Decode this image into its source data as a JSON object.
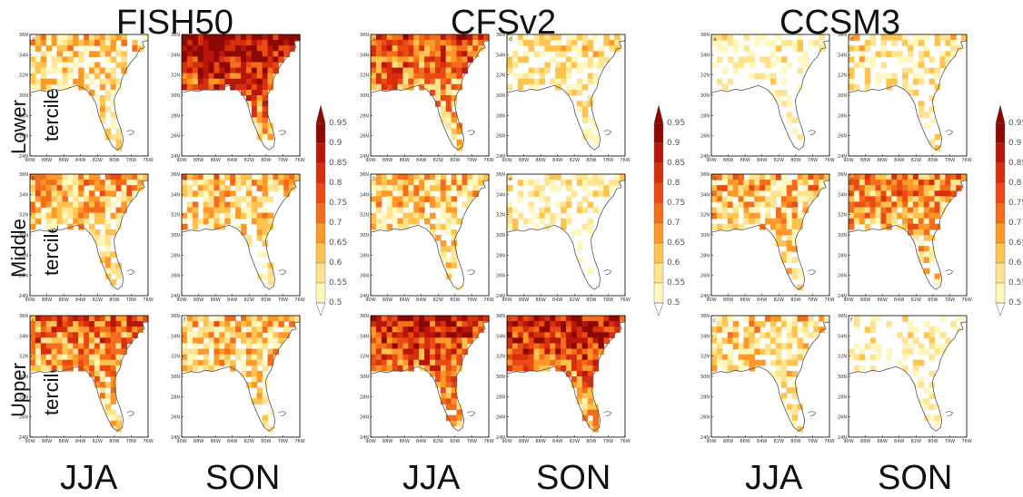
{
  "models": [
    "FISH50",
    "CFSv2",
    "CCSM3"
  ],
  "seasons": [
    "JJA",
    "SON"
  ],
  "row_labels": [
    {
      "top": "Lower",
      "bottom": "tercile"
    },
    {
      "top": "Middle",
      "bottom": "tercile"
    },
    {
      "top": "Upper",
      "bottom": "tercile"
    }
  ],
  "panel_letters": [
    "a",
    "b",
    "c",
    "d",
    "e",
    "f"
  ],
  "lat_ticks": [
    "36N",
    "34N",
    "32N",
    "30N",
    "28N",
    "26N",
    "24N"
  ],
  "lon_ticks": [
    "90W",
    "88W",
    "86W",
    "84W",
    "82W",
    "80W",
    "78W",
    "76W"
  ],
  "colorbar": {
    "labels": [
      "0.95",
      "0.9",
      "0.85",
      "0.8",
      "0.75",
      "0.7",
      "0.65",
      "0.6",
      "0.55",
      "0.5"
    ],
    "colors": [
      "#ffffff",
      "#fff7bc",
      "#fee391",
      "#fec44f",
      "#fe9929",
      "#f46d1a",
      "#ec4a14",
      "#d62f0c",
      "#b8160a",
      "#8c0800"
    ]
  },
  "intensity": {
    "FISH50": [
      [
        0.25,
        0.85
      ],
      [
        0.35,
        0.3
      ],
      [
        0.55,
        0.3
      ]
    ],
    "CFSv2": [
      [
        0.6,
        0.15
      ],
      [
        0.3,
        0.1
      ],
      [
        0.7,
        0.75
      ]
    ],
    "CCSM3": [
      [
        0.05,
        0.15
      ],
      [
        0.35,
        0.45
      ],
      [
        0.25,
        0.05
      ]
    ]
  }
}
